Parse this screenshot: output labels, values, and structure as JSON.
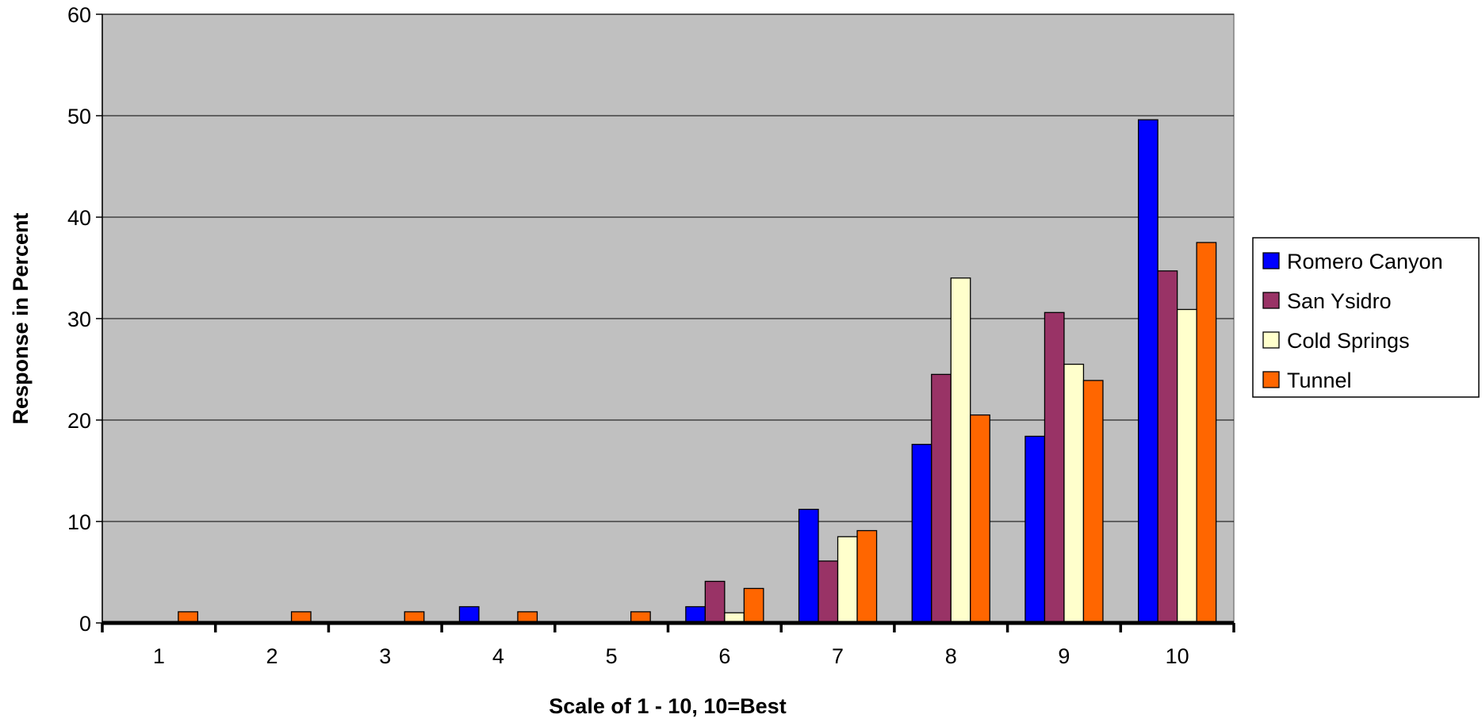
{
  "chart_data": {
    "type": "bar",
    "title": "",
    "xlabel": "Scale of 1 - 10, 10=Best",
    "ylabel": "Response in Percent",
    "categories": [
      "1",
      "2",
      "3",
      "4",
      "5",
      "6",
      "7",
      "8",
      "9",
      "10"
    ],
    "ylim": [
      0,
      60
    ],
    "yticks": [
      "0",
      "10",
      "20",
      "30",
      "40",
      "50",
      "60"
    ],
    "grid": true,
    "legend_position": "right",
    "plot_background": "#C0C0C0",
    "series": [
      {
        "name": "Romero Canyon",
        "color": "#0000FF",
        "values": [
          0,
          0,
          0,
          1.6,
          0,
          1.6,
          11.2,
          17.6,
          18.4,
          49.6
        ]
      },
      {
        "name": "San Ysidro",
        "color": "#993366",
        "values": [
          0,
          0,
          0,
          0,
          0,
          4.1,
          6.1,
          24.5,
          30.6,
          34.7
        ]
      },
      {
        "name": "Cold Springs",
        "color": "#FFFFCC",
        "values": [
          0,
          0,
          0,
          0,
          0,
          1.0,
          8.5,
          34.0,
          25.5,
          30.9
        ]
      },
      {
        "name": "Tunnel",
        "color": "#FF6600",
        "values": [
          1.1,
          1.1,
          1.1,
          1.1,
          1.1,
          3.4,
          9.1,
          20.5,
          23.9,
          37.5
        ]
      }
    ]
  }
}
